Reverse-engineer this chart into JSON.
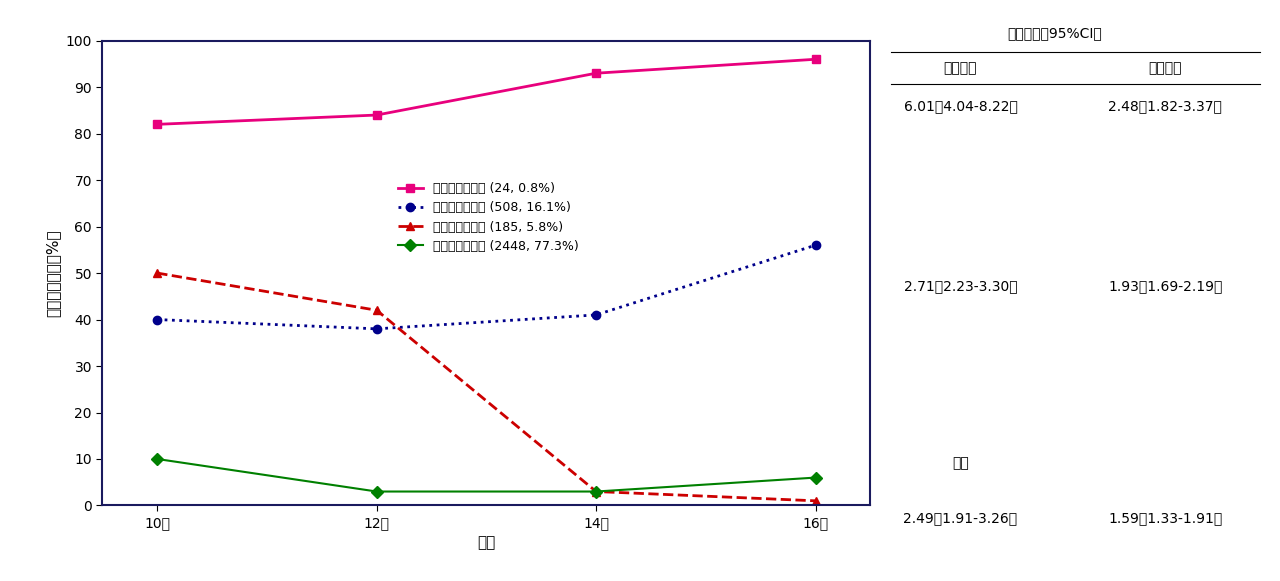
{
  "x_values": [
    10,
    12,
    14,
    16
  ],
  "x_labels": [
    "10歳",
    "12歳",
    "14歳",
    "16歳"
  ],
  "series": [
    {
      "name": "持続的に高い群 (24, 0.8%)",
      "y": [
        82,
        84,
        93,
        96
      ],
      "color": "#E8007D",
      "linestyle": "solid",
      "marker": "s",
      "linewidth": 2.0
    },
    {
      "name": "中程度－上昇群 (508, 16.1%)",
      "y": [
        40,
        38,
        41,
        56
      ],
      "color": "#00008B",
      "linestyle": "dotted",
      "marker": "o",
      "linewidth": 2.0
    },
    {
      "name": "中程度－低下群 (185, 5.8%)",
      "y": [
        50,
        42,
        3,
        1
      ],
      "color": "#CC0000",
      "linestyle": "dashed",
      "marker": "^",
      "linewidth": 2.0
    },
    {
      "name": "持続的に低い群 (2448, 77.3%)",
      "y": [
        10,
        3,
        3,
        6
      ],
      "color": "#008000",
      "linestyle": "solid",
      "marker": "D",
      "linewidth": 1.5
    }
  ],
  "xlabel": "年齢",
  "ylabel": "孤独感の割合（%）",
  "ylim": [
    0,
    100
  ],
  "yticks": [
    0,
    10,
    20,
    30,
    40,
    50,
    60,
    70,
    80,
    90,
    100
  ],
  "title_table": "リスク比（95%CI）",
  "col1_header": "自傷行為",
  "col2_header": "自殺念慮",
  "background_color": "#FFFFFF",
  "axis_color": "#1a1a5e",
  "font_size_axis_label": 11,
  "font_size_tick": 10,
  "font_size_legend": 9,
  "font_size_table": 10
}
